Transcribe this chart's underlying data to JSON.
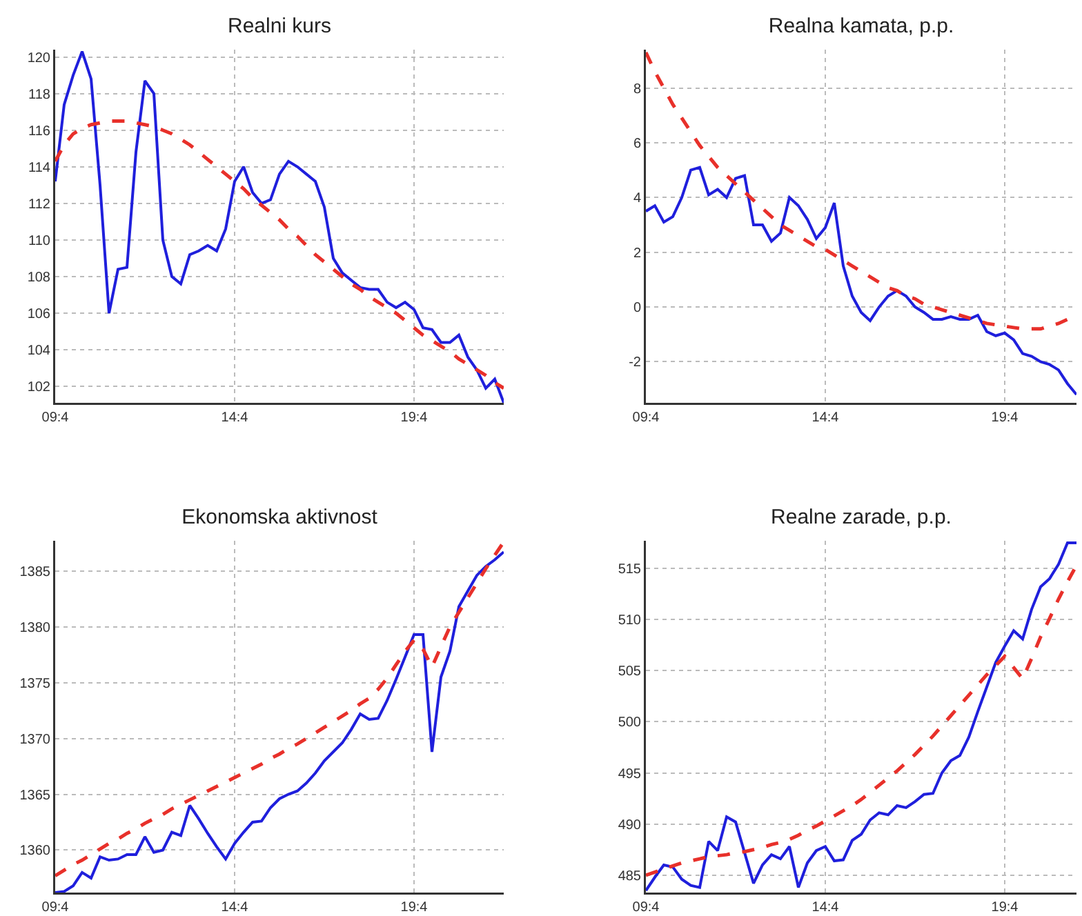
{
  "chart_data": [
    {
      "type": "line",
      "title": "Realni kurs",
      "categories": [
        "09:4",
        null,
        null,
        null,
        null,
        null,
        null,
        null,
        null,
        null,
        null,
        null,
        null,
        null,
        null,
        null,
        null,
        null,
        null,
        null,
        "14:4",
        null,
        null,
        null,
        null,
        null,
        null,
        null,
        null,
        null,
        null,
        null,
        null,
        null,
        null,
        null,
        null,
        null,
        null,
        null,
        "19:4",
        null,
        null,
        null,
        null,
        null,
        null,
        null,
        null,
        null,
        null
      ],
      "ylim": [
        101.1,
        120.4
      ],
      "yticks": [
        102,
        104,
        106,
        108,
        110,
        112,
        114,
        116,
        118,
        120
      ],
      "grid": true,
      "series": [
        {
          "color": "#1f1fdc",
          "line_style": "solid",
          "values": [
            113.2,
            117.4,
            119,
            120.3,
            118.8,
            113,
            106,
            108.4,
            108.5,
            114.8,
            118.7,
            118,
            110,
            108,
            107.6,
            109.2,
            109.4,
            109.7,
            109.4,
            110.6,
            113.2,
            114,
            112.6,
            112,
            112.2,
            113.6,
            114.3,
            114,
            113.6,
            113.2,
            111.8,
            109,
            108.2,
            107.8,
            107.4,
            107.3,
            107.3,
            106.6,
            106.3,
            106.6,
            106.2,
            105.2,
            105.1,
            104.4,
            104.4,
            104.8,
            103.6,
            102.9,
            101.9,
            102.4,
            101.1
          ]
        },
        {
          "color": "#e8302a",
          "line_style": "dashed",
          "values": [
            114.3,
            115.2,
            115.8,
            116.1,
            116.3,
            116.4,
            116.5,
            116.5,
            116.5,
            116.4,
            116.3,
            116.2,
            116,
            115.8,
            115.5,
            115.2,
            114.8,
            114.4,
            114,
            113.6,
            113.2,
            112.8,
            112.3,
            111.9,
            111.5,
            111.1,
            110.6,
            110.2,
            109.7,
            109.2,
            108.8,
            108.4,
            108,
            107.6,
            107.3,
            106.9,
            106.6,
            106.3,
            106,
            105.6,
            105.2,
            104.8,
            104.5,
            104.2,
            103.9,
            103.5,
            103.2,
            102.9,
            102.6,
            102.2,
            101.9
          ]
        }
      ]
    },
    {
      "type": "line",
      "title": "Realna kamata, p.p.",
      "categories": [
        "09:4",
        null,
        null,
        null,
        null,
        null,
        null,
        null,
        null,
        null,
        null,
        null,
        null,
        null,
        null,
        null,
        null,
        null,
        null,
        null,
        "14:4",
        null,
        null,
        null,
        null,
        null,
        null,
        null,
        null,
        null,
        null,
        null,
        null,
        null,
        null,
        null,
        null,
        null,
        null,
        null,
        "19:4",
        null,
        null,
        null,
        null,
        null,
        null,
        null,
        null
      ],
      "ylim": [
        -3.5,
        9.4
      ],
      "yticks": [
        -2,
        0,
        2,
        4,
        6,
        8
      ],
      "grid": true,
      "series": [
        {
          "color": "#1f1fdc",
          "line_style": "solid",
          "values": [
            3.5,
            3.7,
            3.1,
            3.3,
            4.0,
            5.0,
            5.1,
            4.1,
            4.3,
            4.0,
            4.7,
            4.8,
            3.0,
            3.0,
            2.4,
            2.7,
            4.0,
            3.7,
            3.2,
            2.5,
            2.9,
            3.8,
            1.5,
            0.4,
            -0.2,
            -0.5,
            0.0,
            0.4,
            0.6,
            0.4,
            0.0,
            -0.2,
            -0.45,
            -0.45,
            -0.35,
            -0.45,
            -0.45,
            -0.3,
            -0.9,
            -1.05,
            -0.95,
            -1.2,
            -1.7,
            -1.8,
            -2.0,
            -2.1,
            -2.3,
            -2.8,
            -3.2
          ]
        },
        {
          "color": "#e8302a",
          "line_style": "dashed",
          "values": [
            9.3,
            8.6,
            8.0,
            7.4,
            6.9,
            6.4,
            5.9,
            5.5,
            5.1,
            4.8,
            4.5,
            4.2,
            3.9,
            3.6,
            3.3,
            3.0,
            2.8,
            2.6,
            2.4,
            2.2,
            2.1,
            1.9,
            1.7,
            1.5,
            1.3,
            1.1,
            0.9,
            0.7,
            0.6,
            0.4,
            0.3,
            0.1,
            0.0,
            -0.1,
            -0.2,
            -0.3,
            -0.4,
            -0.5,
            -0.6,
            -0.65,
            -0.7,
            -0.75,
            -0.8,
            -0.8,
            -0.8,
            -0.7,
            -0.6,
            -0.45,
            -0.3
          ]
        }
      ]
    },
    {
      "type": "line",
      "title": "Ekonomska aktivnost",
      "categories": [
        "09:4",
        null,
        null,
        null,
        null,
        null,
        null,
        null,
        null,
        null,
        null,
        null,
        null,
        null,
        null,
        null,
        null,
        null,
        null,
        null,
        "14:4",
        null,
        null,
        null,
        null,
        null,
        null,
        null,
        null,
        null,
        null,
        null,
        null,
        null,
        null,
        null,
        null,
        null,
        null,
        null,
        "19:4",
        null,
        null,
        null,
        null,
        null,
        null,
        null,
        null,
        null,
        null
      ],
      "ylim": [
        1356.2,
        1387.7
      ],
      "yticks": [
        1360,
        1365,
        1370,
        1375,
        1380,
        1385
      ],
      "grid": true,
      "series": [
        {
          "color": "#1f1fdc",
          "line_style": "solid",
          "values": [
            1356.2,
            1356.3,
            1356.8,
            1358.0,
            1357.5,
            1359.4,
            1359.1,
            1359.2,
            1359.6,
            1359.6,
            1361.2,
            1359.8,
            1360.0,
            1361.6,
            1361.3,
            1364.0,
            1362.8,
            1361.5,
            1360.3,
            1359.2,
            1360.6,
            1361.6,
            1362.5,
            1362.6,
            1363.8,
            1364.6,
            1365.0,
            1365.3,
            1366.0,
            1366.9,
            1368.0,
            1368.8,
            1369.6,
            1370.8,
            1372.2,
            1371.7,
            1371.8,
            1373.4,
            1375.3,
            1377.3,
            1379.3,
            1379.3,
            1368.8,
            1375.5,
            1377.8,
            1381.8,
            1383.2,
            1384.6,
            1385.4,
            1386.0,
            1386.7
          ]
        },
        {
          "color": "#e8302a",
          "line_style": "dashed",
          "values": [
            1357.7,
            1358.2,
            1358.7,
            1359.1,
            1359.6,
            1360.1,
            1360.6,
            1361,
            1361.5,
            1361.9,
            1362.4,
            1362.8,
            1363.2,
            1363.7,
            1364.1,
            1364.5,
            1364.9,
            1365.3,
            1365.7,
            1366.1,
            1366.5,
            1366.9,
            1367.3,
            1367.7,
            1368.2,
            1368.6,
            1369.1,
            1369.5,
            1370,
            1370.5,
            1371,
            1371.5,
            1372,
            1372.5,
            1373.1,
            1373.6,
            1374.4,
            1375.4,
            1376.6,
            1377.8,
            1378.8,
            1378,
            1376.4,
            1378.2,
            1380,
            1381.3,
            1382.6,
            1383.9,
            1385.2,
            1386.4,
            1387.6
          ]
        }
      ]
    },
    {
      "type": "line",
      "title": "Realne zarade, p.p.",
      "categories": [
        "09:4",
        null,
        null,
        null,
        null,
        null,
        null,
        null,
        null,
        null,
        null,
        null,
        null,
        null,
        null,
        null,
        null,
        null,
        null,
        null,
        "14:4",
        null,
        null,
        null,
        null,
        null,
        null,
        null,
        null,
        null,
        null,
        null,
        null,
        null,
        null,
        null,
        null,
        null,
        null,
        null,
        "19:4",
        null,
        null,
        null,
        null,
        null,
        null,
        null,
        null
      ],
      "ylim": [
        483.3,
        517.7
      ],
      "yticks": [
        485,
        490,
        495,
        500,
        505,
        510,
        515
      ],
      "grid": true,
      "series": [
        {
          "color": "#1f1fdc",
          "line_style": "solid",
          "values": [
            483.5,
            484.8,
            486.0,
            485.8,
            484.6,
            484.0,
            483.8,
            488.3,
            487.4,
            490.7,
            490.2,
            487.2,
            484.2,
            486.0,
            487.0,
            486.6,
            487.8,
            483.8,
            486.2,
            487.4,
            487.8,
            486.4,
            486.5,
            488.4,
            489.0,
            490.4,
            491.1,
            490.9,
            491.8,
            491.6,
            492.2,
            492.9,
            493.0,
            495.0,
            496.2,
            496.7,
            498.5,
            501.0,
            503.4,
            505.8,
            507.4,
            508.9,
            508.1,
            511.0,
            513.2,
            514.0,
            515.4,
            517.5,
            517.5
          ]
        },
        {
          "color": "#e8302a",
          "line_style": "dashed",
          "values": [
            485,
            485.3,
            485.6,
            485.9,
            486.2,
            486.4,
            486.6,
            486.8,
            486.9,
            487,
            487.2,
            487.3,
            487.5,
            487.7,
            488,
            488.2,
            488.5,
            488.9,
            489.4,
            489.8,
            490.3,
            490.8,
            491.3,
            491.8,
            492.4,
            493.1,
            493.8,
            494.5,
            495.2,
            496,
            496.8,
            497.7,
            498.6,
            499.6,
            500.6,
            501.6,
            502.6,
            503.6,
            504.6,
            505.5,
            506.4,
            505.3,
            504.2,
            506.2,
            508.3,
            510.1,
            512,
            513.7,
            515.3
          ]
        }
      ]
    }
  ]
}
